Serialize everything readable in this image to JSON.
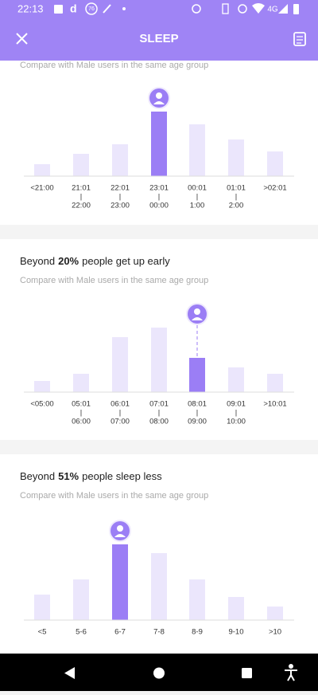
{
  "status_bar": {
    "time": "22:13",
    "badge": "76",
    "network": "4G"
  },
  "header": {
    "title": "SLEEP"
  },
  "sections": [
    {
      "subtitle": "Compare with Male users in the same age group",
      "chart": {
        "type": "bar",
        "color": "#ebe6fc",
        "highlight_color": "#9b7ef5",
        "highlight": 3,
        "dashed": false,
        "categories": [
          [
            "<21:00"
          ],
          [
            "21:01",
            "|",
            "22:00"
          ],
          [
            "22:01",
            "|",
            "23:00"
          ],
          [
            "23:01",
            "|",
            "00:00"
          ],
          [
            "00:01",
            "|",
            "1:00"
          ],
          [
            "01:01",
            "|",
            "2:00"
          ],
          [
            ">02:01"
          ]
        ],
        "values": [
          15,
          28,
          40,
          81,
          65,
          46,
          31
        ]
      }
    },
    {
      "title": {
        "prefix": "Beyond",
        "highlight": "20%",
        "suffix": "people get up early"
      },
      "subtitle": "Compare with Male users in the same age group",
      "chart": {
        "type": "bar",
        "color": "#ebe6fc",
        "highlight_color": "#9b7ef5",
        "highlight": 4,
        "dashed": true,
        "categories": [
          [
            "<05:00"
          ],
          [
            "05:01",
            "|",
            "06:00"
          ],
          [
            "06:01",
            "|",
            "07:00"
          ],
          [
            "07:01",
            "|",
            "08:00"
          ],
          [
            "08:01",
            "|",
            "09:00"
          ],
          [
            "09:01",
            "|",
            "10:00"
          ],
          [
            ">10:01"
          ]
        ],
        "values": [
          14,
          23,
          69,
          81,
          43,
          31,
          23
        ]
      }
    },
    {
      "title": {
        "prefix": "Beyond",
        "highlight": "51%",
        "suffix": "people sleep less"
      },
      "subtitle": "Compare with Male users in the same age group",
      "chart": {
        "type": "bar",
        "color": "#ebe6fc",
        "highlight_color": "#9b7ef5",
        "highlight": 2,
        "dashed": false,
        "categories": [
          [
            "<5"
          ],
          [
            "5-6"
          ],
          [
            "6-7"
          ],
          [
            "7-8"
          ],
          [
            "8-9"
          ],
          [
            "9-10"
          ],
          [
            ">10"
          ]
        ],
        "values": [
          32,
          51,
          95,
          84,
          51,
          29,
          17
        ]
      }
    }
  ]
}
